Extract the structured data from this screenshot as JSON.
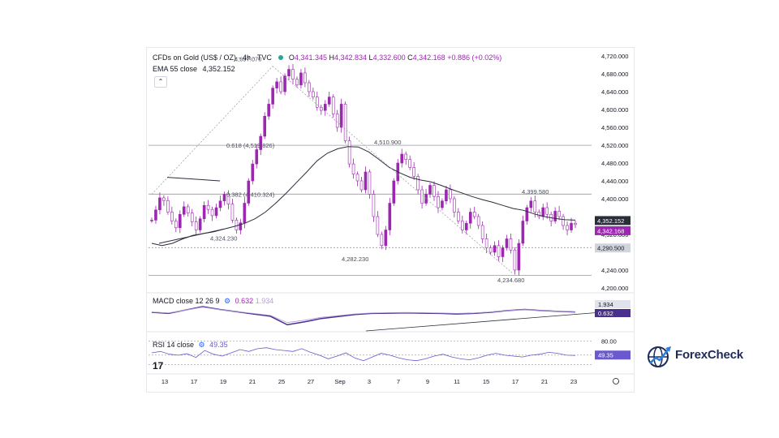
{
  "header": {
    "symbol": "CFDs on Gold (US$ / OZ) · 4h · TVC",
    "ohlc": {
      "open_label": "O",
      "open": "4,341.345",
      "high_label": "H",
      "high": "4,342.834",
      "low_label": "L",
      "low": "4,332.600",
      "close_label": "C",
      "close": "4,342.168",
      "change": "+0.886 (+0.02%)"
    },
    "ema_label": "EMA 55 close",
    "ema_value": "4,352.152",
    "collapse_glyph": "⌃"
  },
  "indicators": {
    "macd_label": "MACD close 12 26 9",
    "macd_value": "0.632",
    "macd_signal_value": "1.934",
    "rsi_label": "RSI 14 close",
    "rsi_value": "49.35"
  },
  "brand": {
    "name": "ForexCheck",
    "tv_mark": "17"
  },
  "colors": {
    "candle": "#9c27b0",
    "ema": "#2a2e39",
    "macd": "#4a2f8f",
    "signal": "#b39ddb",
    "rsi": "#6a5acd",
    "level_tag": "#2a2e39",
    "price_tag": "#9c27b0",
    "logo": "#1c2b5a"
  },
  "chart_data": {
    "type": "candlestick",
    "title": "CFDs on Gold (US$ / OZ) · 4h · TVC",
    "y_axis": {
      "ticks": [
        "4,720.000",
        "4,680.000",
        "4,640.000",
        "4,600.000",
        "4,560.000",
        "4,520.000",
        "4,480.000",
        "4,440.000",
        "4,400.000",
        "4,320.000",
        "4,240.000",
        "4,200.000"
      ],
      "ylim": [
        4200,
        4720
      ]
    },
    "x_axis": {
      "ticks": [
        "13",
        "17",
        "19",
        "21",
        "25",
        "27",
        "Sep",
        "3",
        "7",
        "9",
        "11",
        "15",
        "17",
        "21",
        "23"
      ]
    },
    "price_tags": [
      {
        "label": "4,352.152",
        "value": 4352.152,
        "kind": "ema"
      },
      {
        "label": "4,342.168",
        "value": 4342.168,
        "kind": "price"
      },
      {
        "label": "4,290.500",
        "value": 4290.5,
        "kind": "level"
      }
    ],
    "annotations": [
      {
        "text": "4,697.070",
        "value": 4697.07
      },
      {
        "text": "0.618 (4,519.826)",
        "value": 4519.826
      },
      {
        "text": "4,510.900",
        "value": 4510.9
      },
      {
        "text": "0.382 (4,410.324)",
        "value": 4410.324
      },
      {
        "text": "4,399.580",
        "value": 4399.58
      },
      {
        "text": "4,324.230",
        "value": 4324.23
      },
      {
        "text": "4,282.230",
        "value": 4282.23
      },
      {
        "text": "4,234.680",
        "value": 4234.68
      }
    ],
    "horizontal_levels": [
      4519.826,
      4410.324,
      4290.5,
      4228
    ],
    "closes": [
      4352,
      4375,
      4402,
      4396,
      4370,
      4350,
      4335,
      4365,
      4382,
      4368,
      4348,
      4330,
      4355,
      4385,
      4376,
      4362,
      4380,
      4395,
      4410,
      4388,
      4352,
      4330,
      4346,
      4390,
      4440,
      4478,
      4510,
      4540,
      4585,
      4612,
      4648,
      4662,
      4640,
      4675,
      4690,
      4668,
      4655,
      4682,
      4660,
      4640,
      4628,
      4605,
      4598,
      4612,
      4628,
      4590,
      4560,
      4612,
      4530,
      4478,
      4455,
      4440,
      4420,
      4460,
      4410,
      4360,
      4320,
      4295,
      4330,
      4390,
      4440,
      4480,
      4500,
      4488,
      4470,
      4450,
      4420,
      4390,
      4410,
      4430,
      4405,
      4380,
      4395,
      4420,
      4400,
      4370,
      4350,
      4330,
      4345,
      4370,
      4360,
      4340,
      4310,
      4290,
      4280,
      4295,
      4270,
      4290,
      4310,
      4285,
      4240,
      4300,
      4350,
      4380,
      4395,
      4370,
      4360,
      4380,
      4365,
      4350,
      4372,
      4360,
      4340,
      4330,
      4345,
      4342
    ],
    "ema": [
      4300,
      4295,
      4300,
      4310,
      4318,
      4322,
      4326,
      4332,
      4338,
      4345,
      4355,
      4370,
      4390,
      4412,
      4436,
      4460,
      4485,
      4502,
      4512,
      4517,
      4516,
      4505,
      4488,
      4470,
      4458,
      4448,
      4442,
      4438,
      4430,
      4421,
      4413,
      4405,
      4398,
      4392,
      4385,
      4378,
      4374,
      4366,
      4360,
      4356,
      4353,
      4352
    ],
    "macd": {
      "name": "MACD close 12 26 9",
      "values": [
        0,
        -4,
        8,
        20,
        10,
        2,
        -6,
        -14,
        -44,
        -34,
        -22,
        -15,
        -8,
        -4,
        -3,
        -2,
        -3,
        -4,
        -6,
        -4,
        0,
        6,
        10,
        6,
        3,
        1
      ],
      "signal_value": 1.934,
      "value": 0.632
    },
    "rsi": {
      "name": "RSI 14 close",
      "levels": [
        80.0,
        50.0,
        30.0
      ],
      "values": [
        55,
        58,
        52,
        50,
        53,
        45,
        60,
        52,
        48,
        55,
        62,
        58,
        64,
        66,
        62,
        60,
        58,
        64,
        56,
        50,
        42,
        48,
        55,
        44,
        38,
        46,
        54,
        50,
        44,
        40,
        38,
        42,
        48,
        52,
        46,
        42,
        40,
        44,
        50,
        54,
        50,
        48,
        46,
        50,
        52,
        56,
        54,
        50,
        49.35
      ],
      "value": 49.35,
      "tick_80": "80.00"
    }
  }
}
